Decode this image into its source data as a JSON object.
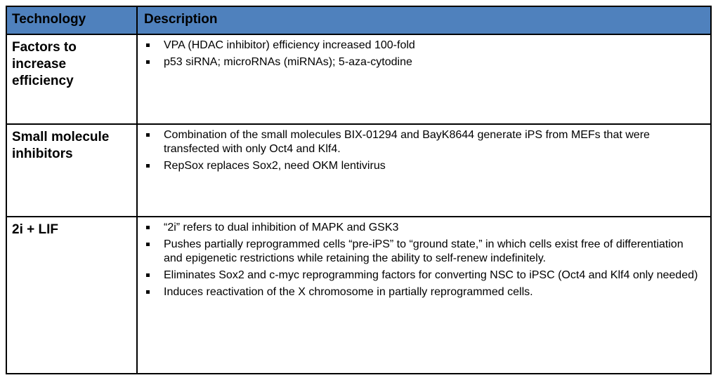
{
  "table": {
    "headers": {
      "technology": "Technology",
      "description": "Description"
    },
    "rows": [
      {
        "technology": "Factors to increase efficiency",
        "bullets": [
          "VPA (HDAC inhibitor) efficiency increased 100-fold",
          "p53 siRNA; microRNAs (miRNAs); 5-aza-cytodine"
        ]
      },
      {
        "technology": "Small molecule inhibitors",
        "bullets": [
          "Combination of the small molecules BIX-01294 and BayK8644 generate iPS from MEFs that were transfected with only Oct4 and Klf4.",
          "RepSox replaces Sox2, need OKM lentivirus"
        ]
      },
      {
        "technology": "2i + LIF",
        "bullets": [
          "“2i” refers to dual inhibition of MAPK and GSK3",
          "Pushes partially reprogrammed cells “pre-iPS” to “ground state,” in which cells exist free of differentiation and epigenetic restrictions while retaining the ability to self-renew indefinitely.",
          "Eliminates Sox2 and c-myc reprogramming factors for converting NSC to iPSC (Oct4 and Klf4 only needed)",
          "Induces reactivation of the X chromosome in partially reprogrammed cells."
        ]
      }
    ]
  },
  "colors": {
    "header_bg": "#4f81bd"
  }
}
